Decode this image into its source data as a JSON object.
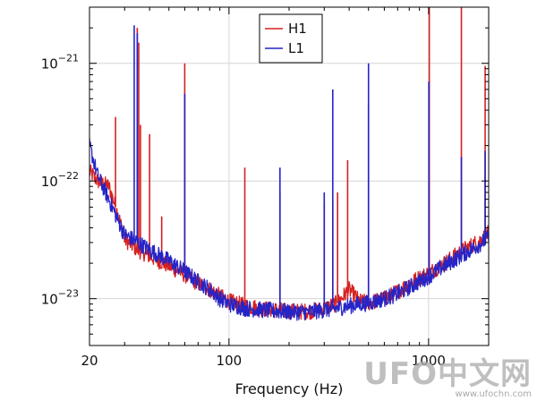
{
  "chart_data": {
    "type": "line",
    "title": "",
    "xlabel": "Frequency (Hz)",
    "ylabel": "",
    "xscale": "log",
    "yscale": "log",
    "xlim": [
      20,
      2000
    ],
    "ylim": [
      4e-24,
      3e-21
    ],
    "x_ticks": [
      20,
      100,
      1000
    ],
    "x_tick_labels": [
      "20",
      "100",
      "1000"
    ],
    "y_ticks": [
      1e-23,
      1e-22,
      1e-21
    ],
    "y_tick_labels": [
      {
        "base": "10",
        "exp": "−23"
      },
      {
        "base": "10",
        "exp": "−22"
      },
      {
        "base": "10",
        "exp": "−21"
      }
    ],
    "grid": true,
    "legend": "top-center",
    "series": [
      {
        "name": "H1",
        "color": "#d62020",
        "baseline": [
          [
            20,
            1.2e-22
          ],
          [
            22,
            1e-22
          ],
          [
            25,
            9e-23
          ],
          [
            28,
            5e-23
          ],
          [
            30,
            3.2e-23
          ],
          [
            35,
            2.6e-23
          ],
          [
            40,
            2.3e-23
          ],
          [
            50,
            1.9e-23
          ],
          [
            60,
            1.6e-23
          ],
          [
            70,
            1.35e-23
          ],
          [
            80,
            1.2e-23
          ],
          [
            90,
            1.05e-23
          ],
          [
            100,
            9.5e-24
          ],
          [
            120,
            8.7e-24
          ],
          [
            150,
            8.2e-24
          ],
          [
            200,
            7.8e-24
          ],
          [
            250,
            7.8e-24
          ],
          [
            300,
            8.2e-24
          ],
          [
            350,
            9.2e-24
          ],
          [
            400,
            1.2e-23
          ],
          [
            450,
            9.5e-24
          ],
          [
            500,
            9.2e-24
          ],
          [
            600,
            1e-23
          ],
          [
            700,
            1.15e-23
          ],
          [
            800,
            1.35e-23
          ],
          [
            1000,
            1.65e-23
          ],
          [
            1200,
            2e-23
          ],
          [
            1500,
            2.6e-23
          ],
          [
            1800,
            3.1e-23
          ],
          [
            2000,
            3.6e-23
          ]
        ],
        "peaks": [
          [
            27,
            3.5e-22
          ],
          [
            34.7,
            2e-21
          ],
          [
            35.3,
            1.5e-21
          ],
          [
            36,
            3e-22
          ],
          [
            40,
            2.5e-22
          ],
          [
            46,
            5e-23
          ],
          [
            60,
            1e-21
          ],
          [
            120,
            1.3e-22
          ],
          [
            180,
            8e-23
          ],
          [
            300,
            6.5e-23
          ],
          [
            331,
            7e-23
          ],
          [
            350,
            8e-23
          ],
          [
            393,
            1.5e-22
          ],
          [
            500,
            4.5e-22
          ],
          [
            1008,
            3e-21
          ],
          [
            1460,
            3e-21
          ],
          [
            1920,
            9.5e-22
          ]
        ]
      },
      {
        "name": "L1",
        "color": "#2424c8",
        "baseline": [
          [
            20,
            2e-22
          ],
          [
            22,
            1.1e-22
          ],
          [
            25,
            7e-23
          ],
          [
            28,
            4.5e-23
          ],
          [
            30,
            3.5e-23
          ],
          [
            35,
            3e-23
          ],
          [
            40,
            2.6e-23
          ],
          [
            50,
            2.1e-23
          ],
          [
            60,
            1.7e-23
          ],
          [
            70,
            1.4e-23
          ],
          [
            80,
            1.2e-23
          ],
          [
            90,
            1e-23
          ],
          [
            100,
            9e-24
          ],
          [
            120,
            8.3e-24
          ],
          [
            150,
            8e-24
          ],
          [
            200,
            7.7e-24
          ],
          [
            250,
            7.7e-24
          ],
          [
            300,
            8e-24
          ],
          [
            350,
            8.3e-24
          ],
          [
            400,
            8.7e-24
          ],
          [
            500,
            9.2e-24
          ],
          [
            600,
            1e-23
          ],
          [
            700,
            1.1e-23
          ],
          [
            800,
            1.25e-23
          ],
          [
            1000,
            1.55e-23
          ],
          [
            1200,
            1.9e-23
          ],
          [
            1500,
            2.4e-23
          ],
          [
            1800,
            2.9e-23
          ],
          [
            2000,
            3.3e-23
          ]
        ],
        "peaks": [
          [
            33.5,
            2.1e-21
          ],
          [
            34.7,
            1.8e-21
          ],
          [
            60,
            5.5e-22
          ],
          [
            180,
            1.3e-22
          ],
          [
            300,
            8e-23
          ],
          [
            331,
            6e-22
          ],
          [
            500,
            1e-21
          ],
          [
            1003,
            7e-22
          ],
          [
            1460,
            1.6e-22
          ],
          [
            1920,
            1.8e-22
          ]
        ]
      }
    ]
  },
  "watermark": {
    "text": "UFO中文网",
    "url": "www.ufochn.com"
  }
}
